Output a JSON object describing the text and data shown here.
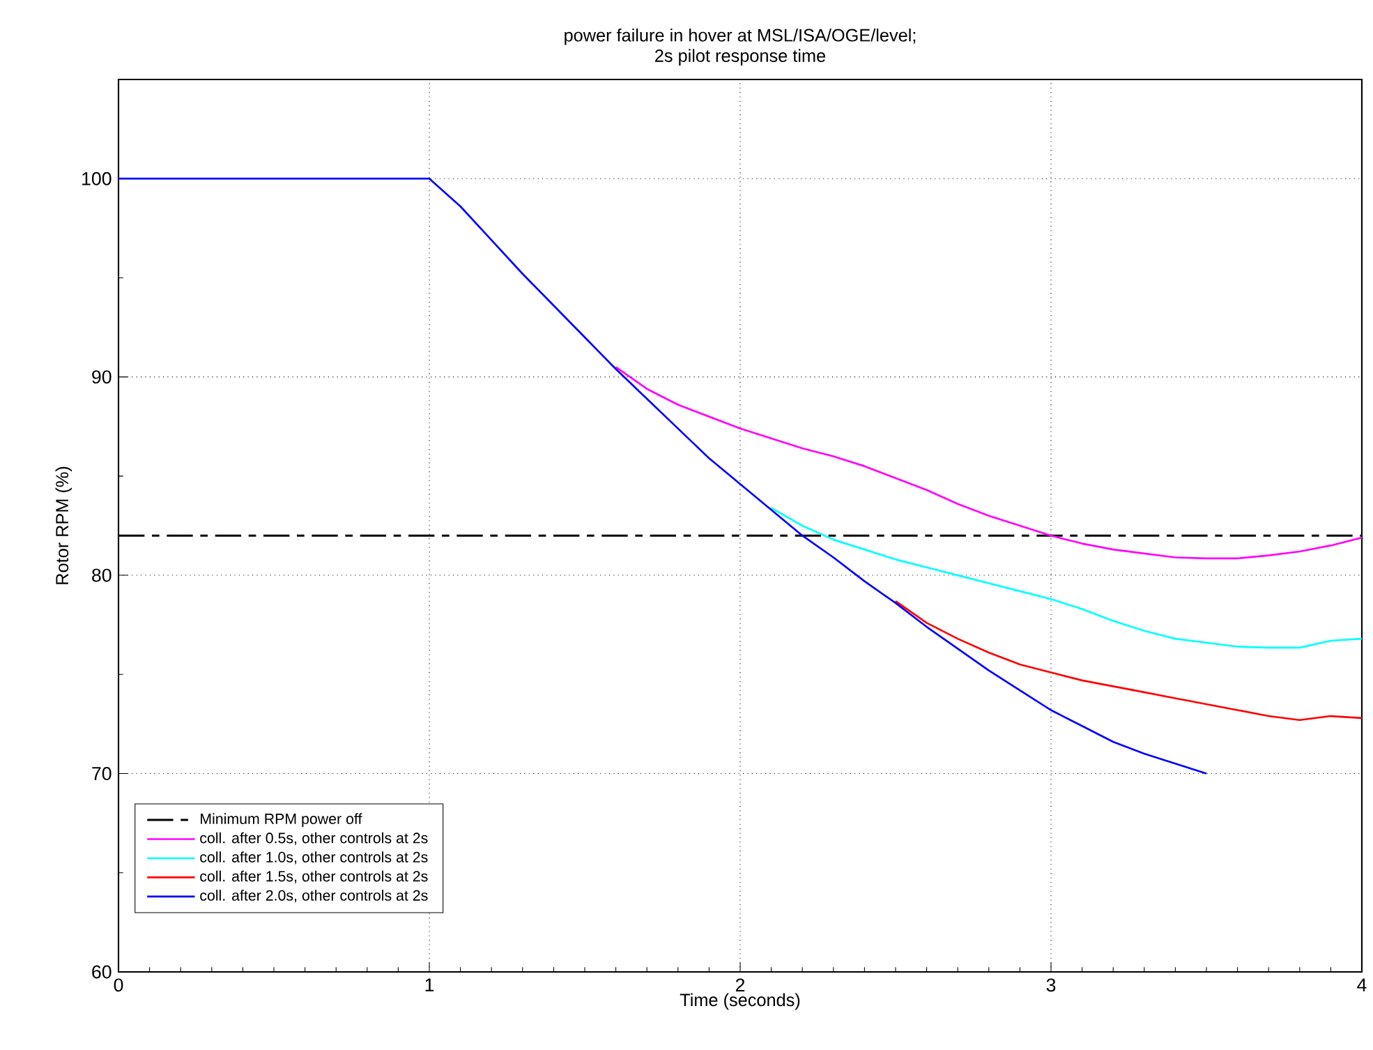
{
  "chart_data": {
    "type": "line",
    "title": "power failure in hover at MSL/ISA/OGE/level;",
    "subtitle": "2s pilot response time",
    "xlabel": "Time (seconds)",
    "ylabel": "Rotor RPM (%)",
    "xlim": [
      0,
      4
    ],
    "ylim": [
      60,
      105
    ],
    "xticks": [
      0,
      1,
      2,
      3,
      4
    ],
    "yticks": [
      60,
      70,
      80,
      90,
      100
    ],
    "grid": true,
    "legend": "bottom left",
    "line_style": "solid",
    "ref_lines": [
      {
        "axis": "y",
        "value": 82,
        "label": "Minimum RPM power off",
        "color": "#000000",
        "line_style": "dashdot"
      }
    ],
    "series": [
      {
        "name": "coll. after 0.5s, other controls at 2s",
        "color": "#ff00ff",
        "x": [
          1.6,
          1.7,
          1.8,
          1.9,
          2.0,
          2.1,
          2.2,
          2.3,
          2.4,
          2.5,
          2.6,
          2.7,
          2.8,
          2.9,
          3.0,
          3.1,
          3.2,
          3.3,
          3.4,
          3.5,
          3.6,
          3.7,
          3.8,
          3.9,
          4.0
        ],
        "values": [
          90.5,
          89.4,
          88.6,
          88.0,
          87.4,
          86.9,
          86.4,
          86.0,
          85.5,
          84.9,
          84.3,
          83.6,
          83.0,
          82.5,
          82.0,
          81.6,
          81.3,
          81.1,
          80.9,
          80.85,
          80.85,
          81.0,
          81.2,
          81.5,
          81.9
        ]
      },
      {
        "name": "coll. after 1.0s, other controls at 2s",
        "color": "#00ffff",
        "x": [
          2.1,
          2.2,
          2.3,
          2.4,
          2.5,
          2.6,
          2.7,
          2.8,
          2.9,
          3.0,
          3.1,
          3.2,
          3.3,
          3.4,
          3.5,
          3.6,
          3.7,
          3.8,
          3.9,
          4.0
        ],
        "values": [
          83.4,
          82.5,
          81.8,
          81.3,
          80.8,
          80.4,
          80.0,
          79.6,
          79.2,
          78.8,
          78.3,
          77.7,
          77.2,
          76.8,
          76.6,
          76.4,
          76.35,
          76.35,
          76.7,
          76.8
        ]
      },
      {
        "name": "coll. after 1.5s, other controls at 2s",
        "color": "#ff0000",
        "x": [
          2.5,
          2.6,
          2.7,
          2.8,
          2.9,
          3.0,
          3.1,
          3.2,
          3.3,
          3.4,
          3.5,
          3.6,
          3.7,
          3.8,
          3.9,
          4.0
        ],
        "values": [
          78.7,
          77.6,
          76.8,
          76.1,
          75.5,
          75.1,
          74.7,
          74.4,
          74.1,
          73.8,
          73.5,
          73.2,
          72.9,
          72.7,
          72.9,
          72.8
        ]
      },
      {
        "name": "coll. after 2.0s, other controls at 2s",
        "color": "#0000ff",
        "x": [
          0,
          1,
          1.1,
          1.2,
          1.3,
          1.4,
          1.5,
          1.6,
          1.7,
          1.8,
          1.9,
          2.0,
          2.1,
          2.2,
          2.3,
          2.4,
          2.5,
          2.6,
          2.7,
          2.8,
          2.9,
          3.0,
          3.1,
          3.2,
          3.3,
          3.4,
          3.5
        ],
        "values": [
          100,
          100,
          98.6,
          96.9,
          95.2,
          93.6,
          92.0,
          90.4,
          88.9,
          87.4,
          85.9,
          84.6,
          83.3,
          82.0,
          80.9,
          79.7,
          78.6,
          77.4,
          76.3,
          75.2,
          74.2,
          73.2,
          72.4,
          71.6,
          71.0,
          70.5,
          70.0
        ]
      }
    ]
  }
}
